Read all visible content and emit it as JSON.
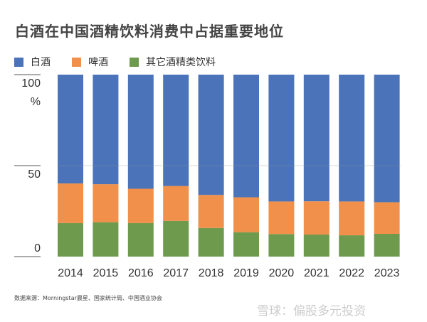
{
  "chart_data": {
    "type": "bar",
    "stacked": true,
    "title": "白酒在中国酒精饮料消费中占据重要地位",
    "categories": [
      "2014",
      "2015",
      "2016",
      "2017",
      "2018",
      "2019",
      "2020",
      "2021",
      "2022",
      "2023"
    ],
    "series": [
      {
        "name": "其它酒精类饮料",
        "color": "#6e9a4e",
        "values": [
          18.4,
          18.9,
          18.4,
          19.6,
          15.7,
          13.4,
          12.4,
          12.1,
          11.7,
          12.5
        ]
      },
      {
        "name": "啤酒",
        "color": "#f0904a",
        "values": [
          21.8,
          20.9,
          18.9,
          19.2,
          18.2,
          19.2,
          17.9,
          18.3,
          18.6,
          17.4
        ]
      },
      {
        "name": "白酒",
        "color": "#4a73b9",
        "values": [
          59.8,
          60.2,
          62.7,
          61.2,
          66.1,
          67.4,
          69.7,
          69.6,
          69.7,
          70.1
        ]
      }
    ],
    "legend_order": [
      "白酒",
      "啤酒",
      "其它酒精类饮料"
    ],
    "yticks": [
      "0",
      "50",
      "100"
    ],
    "yunit": "%",
    "ylim": [
      0,
      100
    ],
    "grid": "at 50 only",
    "legend_placement": "top-left"
  },
  "footer": {
    "source": "数据来源：Morningstar晨星、国家统计局、中国酒业协会",
    "watermark": "雪球：偏股多元投资"
  }
}
